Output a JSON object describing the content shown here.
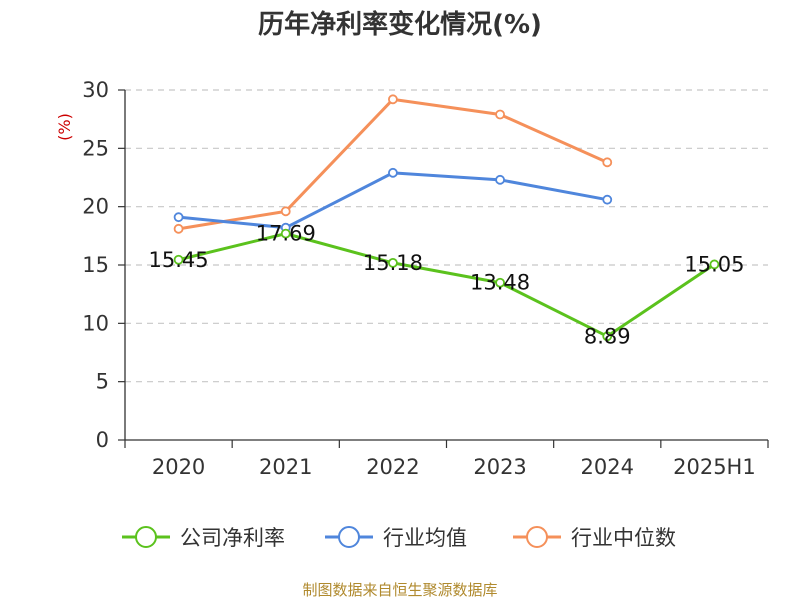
{
  "chart_data": {
    "type": "line",
    "title": "历年净利率变化情况(%)",
    "ylabel": "(%)",
    "categories": [
      "2020",
      "2021",
      "2022",
      "2023",
      "2024",
      "2025H1"
    ],
    "ylim": [
      0,
      30
    ],
    "yticks": [
      0,
      5,
      10,
      15,
      20,
      25,
      30
    ],
    "grid": true,
    "legend_position": "bottom",
    "series": [
      {
        "name": "公司净利率",
        "color": "#5bc21d",
        "show_labels": true,
        "values": [
          15.45,
          17.69,
          15.18,
          13.48,
          8.89,
          15.05
        ],
        "labels": [
          "15.45",
          "17.69",
          "15.18",
          "13.48",
          "8.89",
          "15.05"
        ]
      },
      {
        "name": "行业均值",
        "color": "#4f86dc",
        "show_labels": false,
        "values": [
          19.1,
          18.2,
          22.9,
          22.3,
          20.6,
          null
        ]
      },
      {
        "name": "行业中位数",
        "color": "#f5905a",
        "show_labels": false,
        "values": [
          18.1,
          19.6,
          29.2,
          27.9,
          23.8,
          null
        ]
      }
    ],
    "source": "制图数据来自恒生聚源数据库"
  }
}
